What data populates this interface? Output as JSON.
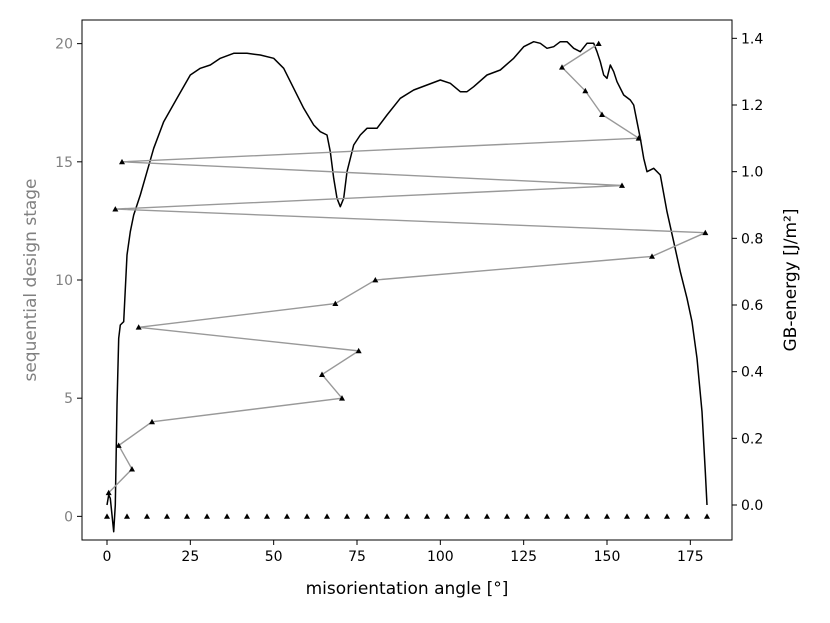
{
  "chart_data": {
    "type": "line",
    "xlabel": "misorientation angle [°]",
    "ylabel_left": "sequential design stage",
    "ylabel_right": "GB-energy [J/m²]",
    "xlim": [
      -7.5,
      187.5
    ],
    "ylim_left": [
      -1,
      21
    ],
    "ylim_right": [
      -0.105,
      1.455
    ],
    "x_ticks": [
      0,
      25,
      50,
      75,
      100,
      125,
      150,
      175
    ],
    "y_ticks_left": [
      0,
      5,
      10,
      15,
      20
    ],
    "y_ticks_right": [
      0.0,
      0.2,
      0.4,
      0.6,
      0.8,
      1.0,
      1.2,
      1.4
    ],
    "grid": false,
    "series": [
      {
        "axis": "left",
        "style": "gray line with black triangle markers",
        "color": "#999999",
        "points": [
          [
            0.5,
            1
          ],
          [
            7.5,
            2
          ],
          [
            3.5,
            3
          ],
          [
            13.5,
            4
          ],
          [
            70.5,
            5
          ],
          [
            64.5,
            6
          ],
          [
            75.5,
            7
          ],
          [
            9.5,
            8
          ],
          [
            68.5,
            9
          ],
          [
            80.5,
            10
          ],
          [
            163.5,
            11
          ],
          [
            179.5,
            12
          ],
          [
            2.5,
            13
          ],
          [
            154.5,
            14
          ],
          [
            4.5,
            15
          ],
          [
            159.5,
            16
          ],
          [
            148.5,
            17
          ],
          [
            143.5,
            18
          ],
          [
            136.5,
            19
          ],
          [
            147.5,
            20
          ]
        ]
      },
      {
        "axis": "left",
        "style": "black triangle markers only",
        "color": "#000000",
        "points": [
          [
            0,
            0
          ],
          [
            6,
            0
          ],
          [
            12,
            0
          ],
          [
            18,
            0
          ],
          [
            24,
            0
          ],
          [
            30,
            0
          ],
          [
            36,
            0
          ],
          [
            42,
            0
          ],
          [
            48,
            0
          ],
          [
            54,
            0
          ],
          [
            60,
            0
          ],
          [
            66,
            0
          ],
          [
            72,
            0
          ],
          [
            78,
            0
          ],
          [
            84,
            0
          ],
          [
            90,
            0
          ],
          [
            96,
            0
          ],
          [
            102,
            0
          ],
          [
            108,
            0
          ],
          [
            114,
            0
          ],
          [
            120,
            0
          ],
          [
            126,
            0
          ],
          [
            132,
            0
          ],
          [
            138,
            0
          ],
          [
            144,
            0
          ],
          [
            150,
            0
          ],
          [
            156,
            0
          ],
          [
            162,
            0
          ],
          [
            168,
            0
          ],
          [
            174,
            0
          ],
          [
            180,
            0
          ]
        ]
      },
      {
        "axis": "right",
        "style": "black line",
        "color": "#000000",
        "points": [
          [
            0,
            0.0
          ],
          [
            0.5,
            0.03
          ],
          [
            1,
            0.02
          ],
          [
            1.5,
            -0.03
          ],
          [
            2,
            -0.08
          ],
          [
            2.5,
            0.0
          ],
          [
            3,
            0.3
          ],
          [
            3.5,
            0.5
          ],
          [
            4,
            0.54
          ],
          [
            5,
            0.55
          ],
          [
            6,
            0.75
          ],
          [
            7,
            0.82
          ],
          [
            8,
            0.87
          ],
          [
            10,
            0.93
          ],
          [
            12,
            1.0
          ],
          [
            14,
            1.07
          ],
          [
            17,
            1.15
          ],
          [
            21,
            1.22
          ],
          [
            25,
            1.29
          ],
          [
            28,
            1.31
          ],
          [
            31,
            1.32
          ],
          [
            34,
            1.34
          ],
          [
            38,
            1.355
          ],
          [
            42,
            1.355
          ],
          [
            46,
            1.35
          ],
          [
            50,
            1.34
          ],
          [
            53,
            1.31
          ],
          [
            56,
            1.25
          ],
          [
            59,
            1.19
          ],
          [
            62,
            1.14
          ],
          [
            64,
            1.12
          ],
          [
            66,
            1.11
          ],
          [
            67,
            1.06
          ],
          [
            68,
            0.98
          ],
          [
            69,
            0.92
          ],
          [
            70,
            0.895
          ],
          [
            71,
            0.92
          ],
          [
            72,
            1.0
          ],
          [
            74,
            1.08
          ],
          [
            76,
            1.11
          ],
          [
            78,
            1.13
          ],
          [
            81,
            1.13
          ],
          [
            84,
            1.17
          ],
          [
            88,
            1.22
          ],
          [
            92,
            1.245
          ],
          [
            96,
            1.26
          ],
          [
            100,
            1.275
          ],
          [
            103,
            1.265
          ],
          [
            106,
            1.24
          ],
          [
            108,
            1.24
          ],
          [
            110,
            1.255
          ],
          [
            114,
            1.29
          ],
          [
            118,
            1.305
          ],
          [
            122,
            1.34
          ],
          [
            125,
            1.375
          ],
          [
            128,
            1.39
          ],
          [
            130,
            1.385
          ],
          [
            132,
            1.37
          ],
          [
            134,
            1.375
          ],
          [
            136,
            1.39
          ],
          [
            138,
            1.39
          ],
          [
            140,
            1.37
          ],
          [
            142,
            1.36
          ],
          [
            144,
            1.385
          ],
          [
            146,
            1.385
          ],
          [
            147,
            1.36
          ],
          [
            148,
            1.33
          ],
          [
            149,
            1.29
          ],
          [
            150,
            1.28
          ],
          [
            151,
            1.32
          ],
          [
            152,
            1.3
          ],
          [
            153,
            1.27
          ],
          [
            155,
            1.23
          ],
          [
            157,
            1.215
          ],
          [
            158,
            1.2
          ],
          [
            159,
            1.15
          ],
          [
            160,
            1.1
          ],
          [
            161,
            1.04
          ],
          [
            162,
            1.0
          ],
          [
            164,
            1.01
          ],
          [
            166,
            0.99
          ],
          [
            168,
            0.88
          ],
          [
            170,
            0.79
          ],
          [
            172,
            0.7
          ],
          [
            174,
            0.62
          ],
          [
            175.5,
            0.55
          ],
          [
            177,
            0.44
          ],
          [
            178.5,
            0.28
          ],
          [
            179.5,
            0.1
          ],
          [
            180,
            0.0
          ]
        ]
      }
    ]
  }
}
